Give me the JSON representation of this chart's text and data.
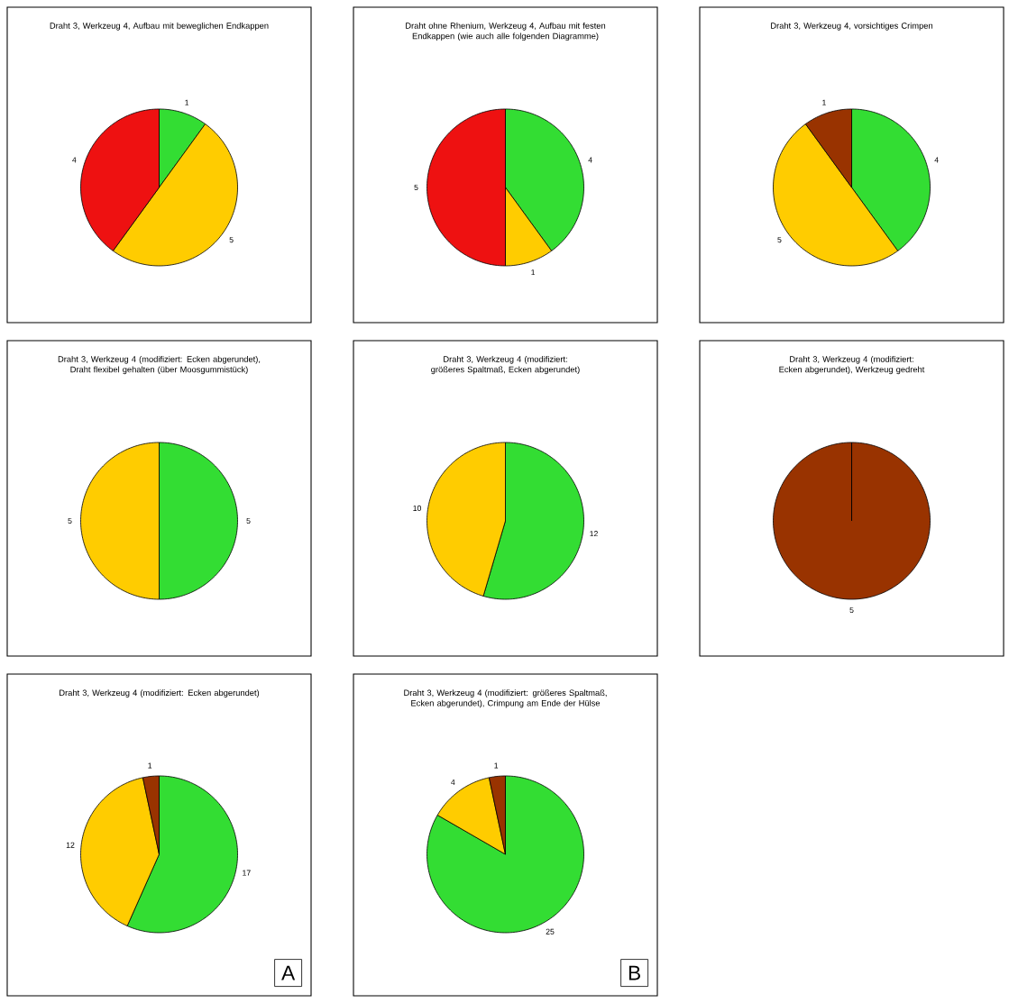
{
  "chart_data": [
    {
      "type": "pie",
      "title": "Draht 3, Werkzeug 4, Aufbau mit beweglichen Endkappen",
      "categories": [
        null,
        null,
        null
      ],
      "values": [
        1,
        5,
        4
      ],
      "colors": [
        "#33dd33",
        "#ffcc00",
        "#ee1111"
      ],
      "data_labels": true
    },
    {
      "type": "pie",
      "title": "Draht ohne Rhenium, Werkzeug 4, Aufbau mit festen Endkappen (wie auch alle folgenden Diagramme)",
      "categories": [
        null,
        null,
        null
      ],
      "values": [
        4,
        1,
        5
      ],
      "colors": [
        "#33dd33",
        "#ffcc00",
        "#ee1111"
      ],
      "data_labels": true
    },
    {
      "type": "pie",
      "title": "Draht 3, Werkzeug 4, vorsichtiges Crimpen",
      "categories": [
        null,
        null,
        null
      ],
      "values": [
        4,
        5,
        1
      ],
      "colors": [
        "#33dd33",
        "#ffcc00",
        "#993300"
      ],
      "data_labels": true
    },
    {
      "type": "pie",
      "title": "Draht 3, Werkzeug 4 (modifiziert: Ecken abgerundet), Draht flexibel gehalten (über Moosgummistück)",
      "categories": [
        null,
        null
      ],
      "values": [
        5,
        5
      ],
      "colors": [
        "#33dd33",
        "#ffcc00"
      ],
      "data_labels": true
    },
    {
      "type": "pie",
      "title": "Draht 3, Werkzeug 4 (modifiziert: größeres Spaltmaß, Ecken abgerundet)",
      "categories": [
        null,
        null
      ],
      "values": [
        12,
        10
      ],
      "colors": [
        "#33dd33",
        "#ffcc00"
      ],
      "data_labels": true
    },
    {
      "type": "pie",
      "title": "Draht 3, Werkzeug 4 (modifiziert: Ecken abgerundet), Werkzeug gedreht",
      "categories": [
        null
      ],
      "values": [
        5
      ],
      "colors": [
        "#993300"
      ],
      "data_labels": true
    },
    {
      "type": "pie",
      "title": "Draht 3, Werkzeug 4 (modifiziert: Ecken abgerundet)",
      "categories": [
        null,
        null,
        null
      ],
      "values": [
        17,
        12,
        1
      ],
      "colors": [
        "#33dd33",
        "#ffcc00",
        "#993300"
      ],
      "data_labels": true,
      "annotations": [
        "A"
      ]
    },
    {
      "type": "pie",
      "title": "Draht 3, Werkzeug 4 (modifiziert: größeres Spaltmaß, Ecken abgerundet), Crimpung am Ende der Hülse",
      "categories": [
        null,
        null,
        null
      ],
      "values": [
        25,
        4,
        1
      ],
      "colors": [
        "#33dd33",
        "#ffcc00",
        "#993300"
      ],
      "data_labels": true,
      "annotations": [
        "B"
      ]
    }
  ]
}
